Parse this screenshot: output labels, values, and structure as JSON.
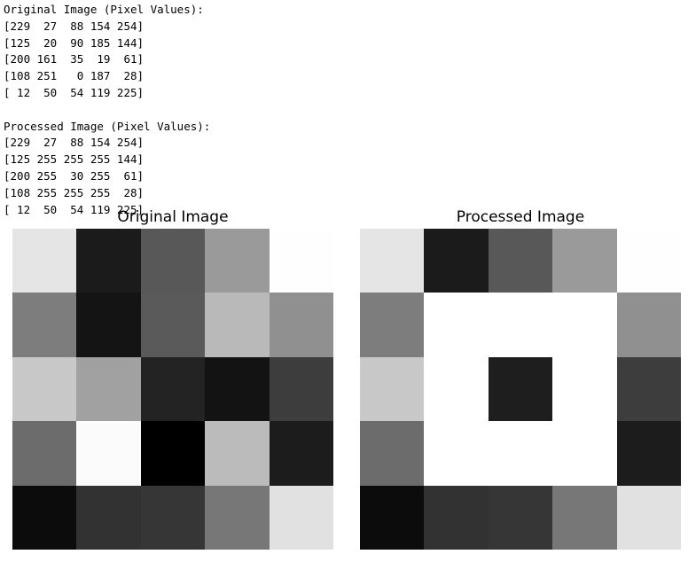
{
  "console": {
    "original_header": "Original Image (Pixel Values):",
    "original_rows": [
      "[229  27  88 154 254]",
      "[125  20  90 185 144]",
      "[200 161  35  19  61]",
      "[108 251   0 187  28]",
      "[ 12  50  54 119 225]"
    ],
    "processed_header": "Processed Image (Pixel Values):",
    "processed_rows": [
      "[229  27  88 154 254]",
      "[125 255 255 255 144]",
      "[200 255  30 255  61]",
      "[108 255 255 255  28]",
      "[ 12  50  54 119 225]"
    ]
  },
  "plots": {
    "original_title": "Original Image",
    "processed_title": "Processed Image"
  },
  "chart_data": [
    {
      "type": "heatmap",
      "title": "Original Image",
      "colormap": "gray",
      "vmin": 0,
      "vmax": 255,
      "values": [
        [
          229,
          27,
          88,
          154,
          254
        ],
        [
          125,
          20,
          90,
          185,
          144
        ],
        [
          200,
          161,
          35,
          19,
          61
        ],
        [
          108,
          251,
          0,
          187,
          28
        ],
        [
          12,
          50,
          54,
          119,
          225
        ]
      ]
    },
    {
      "type": "heatmap",
      "title": "Processed Image",
      "colormap": "gray",
      "vmin": 0,
      "vmax": 255,
      "values": [
        [
          229,
          27,
          88,
          154,
          254
        ],
        [
          125,
          255,
          255,
          255,
          144
        ],
        [
          200,
          255,
          30,
          255,
          61
        ],
        [
          108,
          255,
          255,
          255,
          28
        ],
        [
          12,
          50,
          54,
          119,
          225
        ]
      ]
    }
  ]
}
